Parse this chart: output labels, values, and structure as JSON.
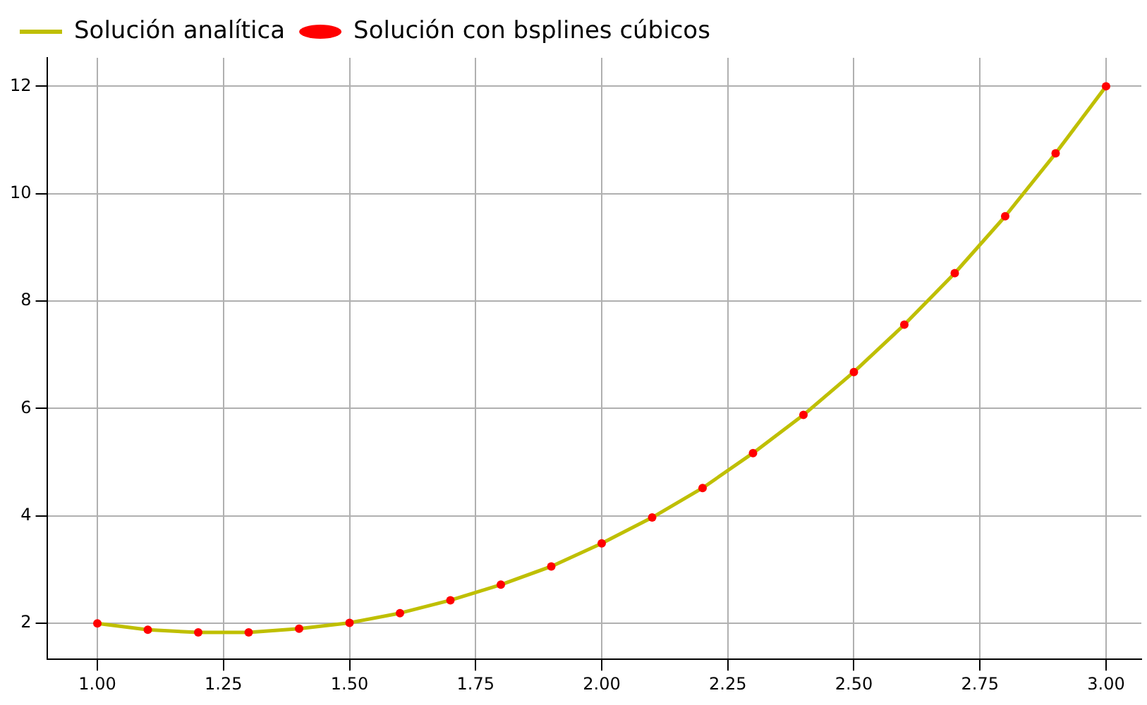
{
  "chart_data": {
    "type": "line",
    "x": [
      1.0,
      1.1,
      1.2,
      1.3,
      1.4,
      1.5,
      1.6,
      1.7,
      1.8,
      1.9,
      2.0,
      2.1,
      2.2,
      2.3,
      2.4,
      2.5,
      2.6,
      2.7,
      2.8,
      2.9,
      3.0
    ],
    "series": [
      {
        "name": "Solución analítica",
        "type": "line",
        "color": "#bfbf00",
        "marker": "none",
        "line_style": "solid",
        "values": [
          2.0,
          1.88,
          1.83,
          1.83,
          1.9,
          2.01,
          2.19,
          2.43,
          2.72,
          3.06,
          3.49,
          3.97,
          4.52,
          5.17,
          5.88,
          6.68,
          7.56,
          8.52,
          9.58,
          10.75,
          12.0
        ]
      },
      {
        "name": "Solución con bsplines cúbicos",
        "type": "scatter",
        "color": "#ff0000",
        "marker": "circle",
        "values": [
          2.0,
          1.88,
          1.83,
          1.83,
          1.9,
          2.01,
          2.19,
          2.43,
          2.72,
          3.06,
          3.49,
          3.97,
          4.52,
          5.17,
          5.88,
          6.68,
          7.56,
          8.52,
          9.58,
          10.75,
          12.0
        ]
      }
    ],
    "xlim": [
      0.9,
      3.07
    ],
    "xticks": [
      {
        "value": 1.0,
        "label": "1.00"
      },
      {
        "value": 1.25,
        "label": "1.25"
      },
      {
        "value": 1.5,
        "label": "1.50"
      },
      {
        "value": 1.75,
        "label": "1.75"
      },
      {
        "value": 2.0,
        "label": "2.00"
      },
      {
        "value": 2.25,
        "label": "2.25"
      },
      {
        "value": 2.5,
        "label": "2.50"
      },
      {
        "value": 2.75,
        "label": "2.75"
      },
      {
        "value": 3.0,
        "label": "3.00"
      }
    ],
    "ylim": [
      1.33,
      12.53
    ],
    "yticks": [
      2,
      4,
      6,
      8,
      10,
      12
    ],
    "grid": true,
    "legend": "top left"
  }
}
